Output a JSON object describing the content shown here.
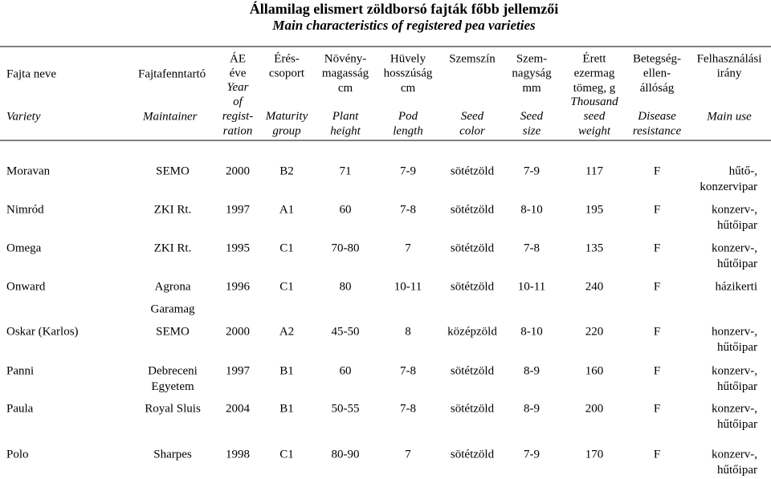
{
  "title": "Államilag elismert zöldborsó fajták főbb jellemzői",
  "subtitle": "Main characteristics of registered pea varieties",
  "table": {
    "header": [
      {
        "hu": [
          "Fajta neve"
        ],
        "en": [
          "Variety"
        ]
      },
      {
        "hu": [
          "Fajtafenntartó"
        ],
        "en": [
          "Maintainer"
        ]
      },
      {
        "hu": [
          "ÁE",
          "éve"
        ],
        "en": [
          "Year",
          "of",
          "regist-",
          "ration"
        ]
      },
      {
        "hu": [
          "Érés-",
          "csoport"
        ],
        "en": [
          "Maturity",
          "group"
        ]
      },
      {
        "hu": [
          "Növény-",
          "magasság",
          "cm"
        ],
        "en": [
          "Plant",
          "height"
        ]
      },
      {
        "hu": [
          "Hüvely",
          "hosszúság",
          "cm"
        ],
        "en": [
          "Pod",
          "length"
        ]
      },
      {
        "hu": [
          "Szemszín"
        ],
        "en": [
          "Seed",
          "color"
        ]
      },
      {
        "hu": [
          "Szem-",
          "nagyság",
          "mm"
        ],
        "en": [
          "Seed",
          "size"
        ]
      },
      {
        "hu": [
          "Érett",
          "ezermag",
          "tömeg, g"
        ],
        "en": [
          "Thousand",
          "seed",
          "weight"
        ]
      },
      {
        "hu": [
          "Betegség-",
          "ellen-",
          "állóság"
        ],
        "en": [
          "Disease",
          "resistance"
        ]
      },
      {
        "hu": [
          "Felhasználási",
          "irány"
        ],
        "en": [
          "Main use"
        ]
      }
    ],
    "rows": [
      [
        "Moravan",
        "SEMO",
        "2000",
        "B2",
        "71",
        "7-9",
        "sötétzöld",
        "7-9",
        "117",
        "F",
        [
          "hűtő-,",
          "konzervipar"
        ]
      ],
      [
        "Nimród",
        "ZKI Rt.",
        "1997",
        "A1",
        "60",
        "7-8",
        "sötétzöld",
        "8-10",
        "195",
        "F",
        [
          "konzerv-,",
          "hűtőipar"
        ]
      ],
      [
        "Omega",
        "ZKI Rt.",
        "1995",
        "C1",
        "70-80",
        "7",
        "sötétzöld",
        "7-8",
        "135",
        "F",
        [
          "konzerv-,",
          "hűtőipar"
        ]
      ],
      [
        "Onward",
        [
          "Agrona",
          "Garamag"
        ],
        "1996",
        "C1",
        "80",
        "10-11",
        "sötétzöld",
        "10-11",
        "240",
        "F",
        "házikerti"
      ],
      [
        "Oskar (Karlos)",
        "SEMO",
        "2000",
        "A2",
        "45-50",
        "8",
        "középzöld",
        "8-10",
        "220",
        "F",
        [
          "honzerv-,",
          "hűtőipar"
        ]
      ],
      [
        "Panni",
        [
          "Debreceni",
          "Egyetem"
        ],
        "1997",
        "B1",
        "60",
        "7-8",
        "sötétzöld",
        "8-9",
        "160",
        "F",
        [
          "konzerv-,",
          "hűtőipar"
        ]
      ],
      [
        "Paula",
        "Royal Sluis",
        "2004",
        "B1",
        "50-55",
        "7-8",
        "sötétzöld",
        "8-9",
        "200",
        "F",
        [
          "konzerv-,",
          "hűtőipar"
        ]
      ],
      [
        "Polo",
        "Sharpes",
        "1998",
        "C1",
        "80-90",
        "7",
        "sötétzöld",
        "7-9",
        "170",
        "F",
        [
          "konzerv-,",
          "hűtőipar"
        ]
      ]
    ]
  }
}
